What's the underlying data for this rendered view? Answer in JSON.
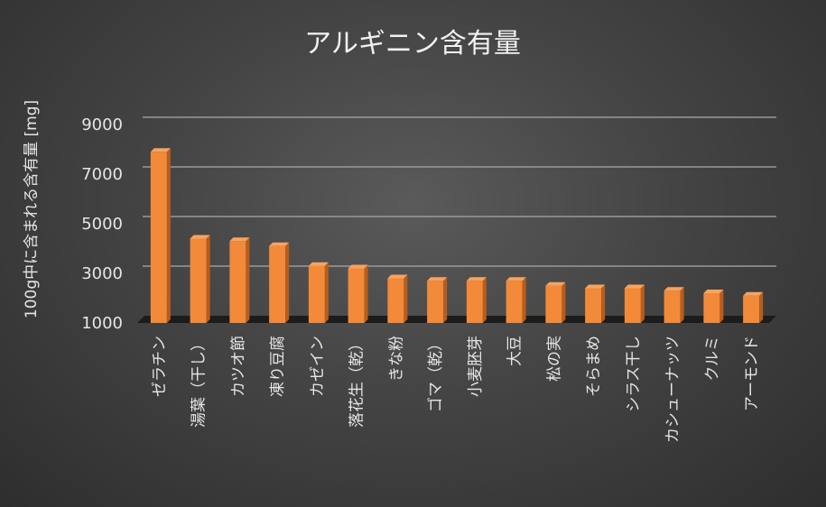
{
  "chart_data": {
    "type": "bar",
    "title": "アルギニン含有量",
    "xlabel": "",
    "ylabel": "100g中に含まれる含有量 [mg]",
    "categories": [
      "ゼラチン",
      "湯葉（干し）",
      "カツオ節",
      "凍り豆腐",
      "カゼイン",
      "落花生（乾）",
      "きな粉",
      "ゴマ（乾）",
      "小麦胚芽",
      "大豆",
      "松の実",
      "そらまめ",
      "シラス干し",
      "カシューナッツ",
      "クルミ",
      "アーモンド"
    ],
    "values": [
      7900,
      4400,
      4300,
      4100,
      3300,
      3200,
      2800,
      2700,
      2700,
      2700,
      2500,
      2400,
      2400,
      2300,
      2200,
      2100
    ],
    "ylim": [
      1000,
      9000
    ],
    "yticks": [
      "1000",
      "3000",
      "5000",
      "7000",
      "9000"
    ],
    "grid": true,
    "colors": {
      "bar_front": "#f28a3a",
      "bar_side": "#b85d1c",
      "bar_top": "#f6a460",
      "grid": "#9a9a9a",
      "floor": "#1c1c1c"
    }
  }
}
